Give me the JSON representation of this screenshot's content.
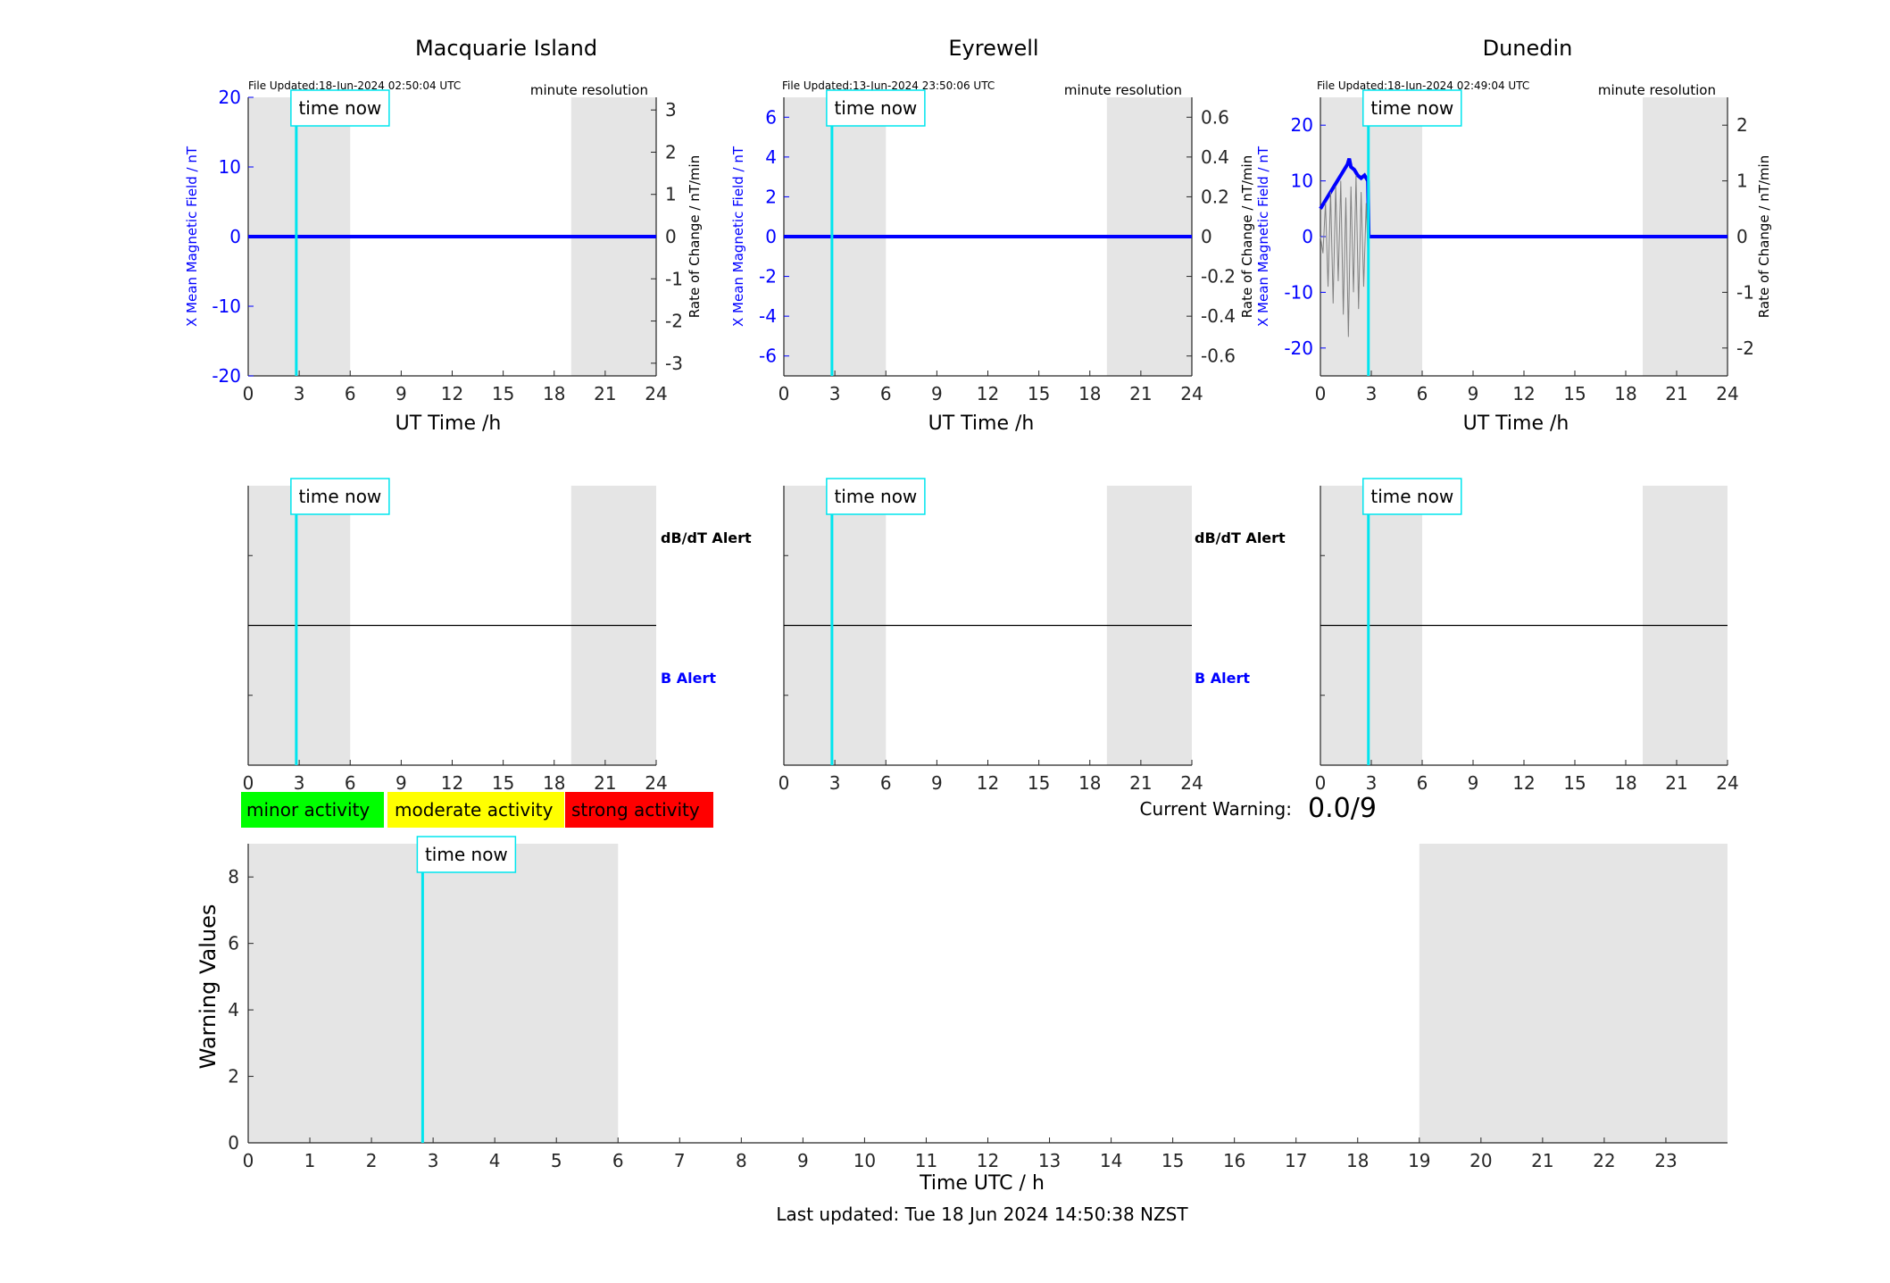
{
  "figure": {
    "last_updated": "Last updated: Tue 18 Jun 2024 14:50:38 NZST",
    "time_now_label": "time now",
    "time_now_hour": 2.83,
    "colors": {
      "x_series": "#0000ff",
      "rate_series": "#808080",
      "time_now": "#00e5ee",
      "night_shade": "#e5e5e5",
      "minor": "#00ff00",
      "moderate": "#ffff00",
      "strong": "#ff0000"
    }
  },
  "legend": {
    "minor": "minor activity",
    "moderate": "moderate activity",
    "strong": "strong activity"
  },
  "warning": {
    "label": "Current Warning:",
    "value": "0.0/9"
  },
  "alert_labels": {
    "dbdt": "dB/dT Alert",
    "b": "B Alert"
  },
  "chart_data": [
    {
      "type": "line",
      "title": "Macquarie Island",
      "file_updated": "File Updated:18-Jun-2024 02:50:04 UTC",
      "resolution": "minute resolution",
      "xlabel": "UT Time /h",
      "ylabel_left": "X Mean Magnetic Field / nT",
      "ylabel_right": "Rate of Change / nT/min",
      "xlim": [
        0,
        24
      ],
      "xticks": [
        0,
        3,
        6,
        9,
        12,
        15,
        18,
        21,
        24
      ],
      "ylim_left": [
        -20,
        20
      ],
      "yticks_left": [
        -20,
        -10,
        0,
        10,
        20
      ],
      "ylim_right": [
        -3.3,
        3.3
      ],
      "yticks_right": [
        -3,
        -2,
        -1,
        0,
        1,
        2,
        3
      ],
      "shaded_hours": [
        [
          0,
          6
        ],
        [
          19,
          24
        ]
      ],
      "series": [
        {
          "name": "X mean",
          "x": [
            0,
            24
          ],
          "y": [
            0,
            0
          ]
        }
      ]
    },
    {
      "type": "line",
      "title": "Eyrewell",
      "file_updated": "File Updated:13-Jun-2024 23:50:06 UTC",
      "resolution": "minute resolution",
      "xlabel": "UT Time /h",
      "ylabel_left": "X Mean Magnetic Field / nT",
      "ylabel_right": "Rate of Change / nT/min",
      "xlim": [
        0,
        24
      ],
      "xticks": [
        0,
        3,
        6,
        9,
        12,
        15,
        18,
        21,
        24
      ],
      "ylim_left": [
        -7,
        7
      ],
      "yticks_left": [
        -6,
        -4,
        -2,
        0,
        2,
        4,
        6
      ],
      "ylim_right": [
        -0.7,
        0.7
      ],
      "yticks_right": [
        -0.6,
        -0.4,
        -0.2,
        0,
        0.2,
        0.4,
        0.6
      ],
      "shaded_hours": [
        [
          0,
          6
        ],
        [
          19,
          24
        ]
      ],
      "series": [
        {
          "name": "X mean",
          "x": [
            0,
            24
          ],
          "y": [
            0,
            0
          ]
        }
      ]
    },
    {
      "type": "line",
      "title": "Dunedin",
      "file_updated": "File Updated:18-Jun-2024 02:49:04 UTC",
      "resolution": "minute resolution",
      "xlabel": "UT Time /h",
      "ylabel_left": "X Mean Magnetic Field / nT",
      "ylabel_right": "Rate of Change / nT/min",
      "xlim": [
        0,
        24
      ],
      "xticks": [
        0,
        3,
        6,
        9,
        12,
        15,
        18,
        21,
        24
      ],
      "ylim_left": [
        -25,
        25
      ],
      "yticks_left": [
        -20,
        -10,
        0,
        10,
        20
      ],
      "ylim_right": [
        -2.5,
        2.5
      ],
      "yticks_right": [
        -2,
        -1,
        0,
        1,
        2
      ],
      "shaded_hours": [
        [
          0,
          6
        ],
        [
          19,
          24
        ]
      ],
      "series": [
        {
          "name": "X mean",
          "x": [
            0,
            0.2,
            0.4,
            0.6,
            0.8,
            1.0,
            1.2,
            1.4,
            1.6,
            1.7,
            1.8,
            2.0,
            2.2,
            2.4,
            2.6,
            2.8,
            2.85,
            3.0,
            24
          ],
          "y": [
            5,
            6,
            7,
            8,
            9,
            10,
            11,
            12,
            13,
            14,
            12.5,
            12,
            11,
            10.5,
            11,
            10,
            0,
            0,
            0
          ]
        },
        {
          "name": "Rate of change",
          "x": [
            0,
            0.15,
            0.3,
            0.45,
            0.6,
            0.75,
            0.9,
            1.05,
            1.2,
            1.35,
            1.5,
            1.65,
            1.8,
            1.95,
            2.1,
            2.25,
            2.4,
            2.55,
            2.7,
            2.8
          ],
          "y": [
            0,
            -0.3,
            0.6,
            -0.9,
            0.8,
            -1.2,
            0.9,
            -0.8,
            1.0,
            -1.4,
            0.7,
            -1.8,
            0.9,
            -1.0,
            1.1,
            -1.3,
            0.8,
            -0.9,
            0.6,
            -0.3
          ]
        }
      ]
    },
    {
      "type": "line",
      "title": "",
      "ylabel": "",
      "xlim": [
        0,
        24
      ],
      "xticks": [
        0,
        3,
        6,
        9,
        12,
        15,
        18,
        21,
        24
      ],
      "shaded_hours": [
        [
          0,
          6
        ],
        [
          19,
          24
        ]
      ],
      "series": []
    },
    {
      "type": "line",
      "title": "",
      "ylabel": "",
      "xlim": [
        0,
        24
      ],
      "xticks": [
        0,
        3,
        6,
        9,
        12,
        15,
        18,
        21,
        24
      ],
      "shaded_hours": [
        [
          0,
          6
        ],
        [
          19,
          24
        ]
      ],
      "series": []
    },
    {
      "type": "line",
      "title": "",
      "ylabel": "",
      "xlim": [
        0,
        24
      ],
      "xticks": [
        0,
        3,
        6,
        9,
        12,
        15,
        18,
        21,
        24
      ],
      "shaded_hours": [
        [
          0,
          6
        ],
        [
          19,
          24
        ]
      ],
      "series": []
    },
    {
      "type": "bar",
      "title": "",
      "xlabel": "Time UTC / h",
      "ylabel": "Warning Values",
      "xlim": [
        0,
        24
      ],
      "xticks": [
        0,
        1,
        2,
        3,
        4,
        5,
        6,
        7,
        8,
        9,
        10,
        11,
        12,
        13,
        14,
        15,
        16,
        17,
        18,
        19,
        20,
        21,
        22,
        23
      ],
      "ylim": [
        0,
        9
      ],
      "yticks": [
        0,
        2,
        4,
        6,
        8
      ],
      "shaded_hours": [
        [
          0,
          6
        ],
        [
          19,
          24
        ]
      ],
      "series": []
    }
  ]
}
